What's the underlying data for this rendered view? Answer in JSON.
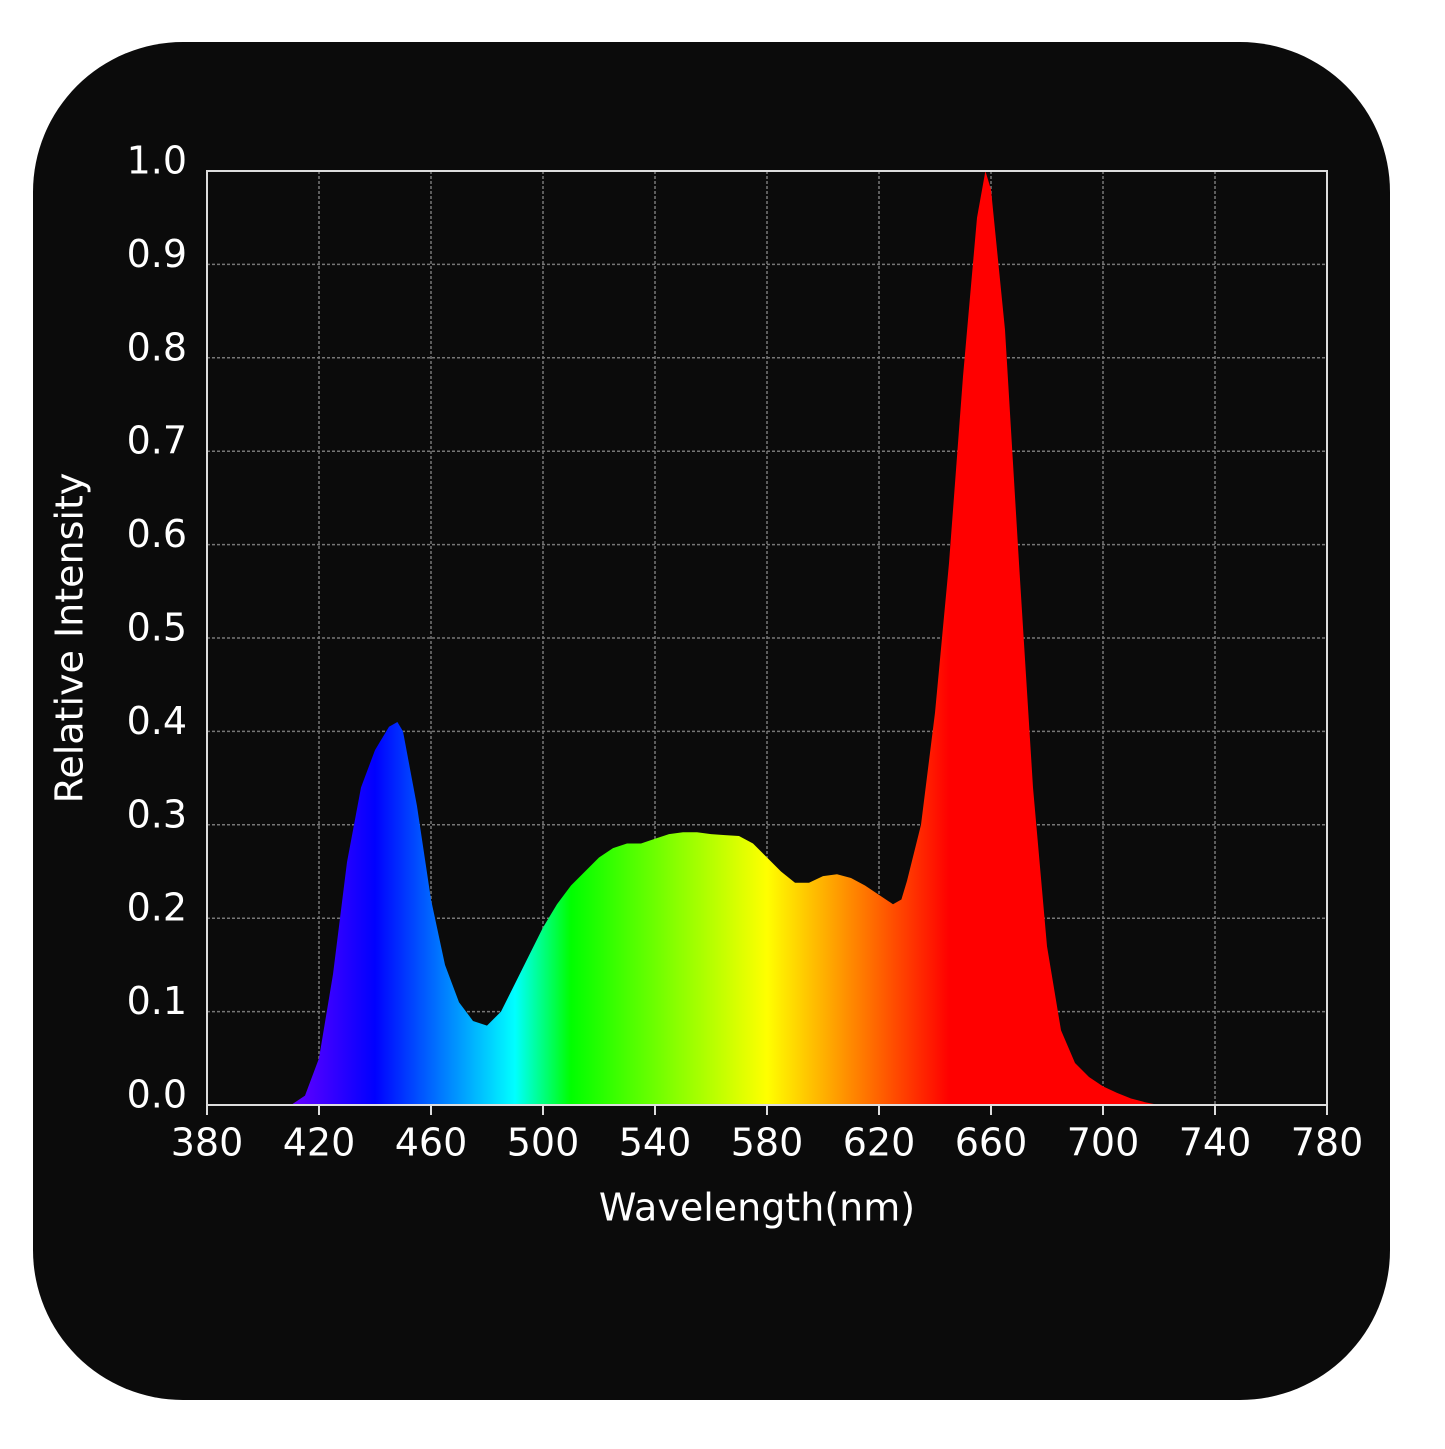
{
  "chart_data": {
    "type": "area",
    "xlabel": "Wavelength(nm)",
    "ylabel": "Relative Intensity",
    "x": [
      410,
      415,
      420,
      425,
      430,
      435,
      440,
      445,
      448,
      450,
      455,
      460,
      465,
      470,
      475,
      480,
      485,
      490,
      495,
      500,
      505,
      510,
      515,
      520,
      525,
      530,
      535,
      540,
      545,
      550,
      555,
      560,
      565,
      570,
      575,
      580,
      585,
      590,
      595,
      600,
      605,
      610,
      615,
      620,
      625,
      628,
      630,
      635,
      640,
      645,
      650,
      655,
      658,
      660,
      665,
      670,
      675,
      680,
      685,
      690,
      695,
      700,
      705,
      710,
      715,
      720
    ],
    "y": [
      0,
      0.01,
      0.05,
      0.14,
      0.26,
      0.34,
      0.38,
      0.405,
      0.41,
      0.4,
      0.32,
      0.22,
      0.15,
      0.11,
      0.09,
      0.085,
      0.1,
      0.13,
      0.16,
      0.19,
      0.215,
      0.235,
      0.25,
      0.265,
      0.275,
      0.28,
      0.28,
      0.285,
      0.29,
      0.292,
      0.292,
      0.29,
      0.289,
      0.288,
      0.28,
      0.265,
      0.25,
      0.238,
      0.238,
      0.245,
      0.247,
      0.243,
      0.235,
      0.225,
      0.215,
      0.22,
      0.24,
      0.3,
      0.42,
      0.58,
      0.78,
      0.95,
      1.0,
      0.98,
      0.83,
      0.58,
      0.34,
      0.17,
      0.08,
      0.045,
      0.03,
      0.02,
      0.013,
      0.007,
      0.003,
      0
    ],
    "xlim": [
      380,
      780
    ],
    "ylim": [
      0,
      1
    ],
    "xticks": [
      380,
      420,
      460,
      500,
      540,
      580,
      620,
      660,
      700,
      740,
      780
    ],
    "yticks": [
      {
        "value": 0,
        "label": "0.0"
      },
      0.1,
      0.2,
      0.3,
      0.4,
      0.5,
      0.6,
      0.7,
      0.8,
      0.9,
      {
        "value": 1,
        "label": "1.0"
      }
    ],
    "grid": true
  }
}
